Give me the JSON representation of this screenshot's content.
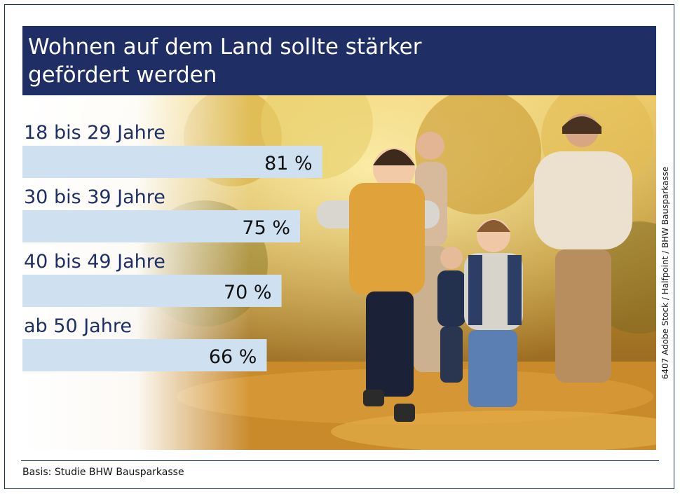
{
  "header": {
    "title": "Wohnen auf dem Land sollte stärker gefördert werden"
  },
  "chart_data": {
    "type": "bar",
    "orientation": "horizontal",
    "title": "Wohnen auf dem Land sollte stärker gefördert werden",
    "categories": [
      "18 bis 29 Jahre",
      "30 bis 39 Jahre",
      "40 bis 49 Jahre",
      "ab 50 Jahre"
    ],
    "values": [
      81,
      75,
      70,
      66
    ],
    "value_labels": [
      "81 %",
      "75 %",
      "70 %",
      "66 %"
    ],
    "unit": "%",
    "xlim": [
      0,
      100
    ],
    "grid": false,
    "legend": "none",
    "bar_color": "#cfe0f1",
    "label_color": "#1f2f66"
  },
  "footer": {
    "source": "Basis: Studie BHW Bausparkasse",
    "credit": "6407 Adobe Stock / Halfpoint / BHW Bausparkasse"
  },
  "colors": {
    "brand": "#1f2f66",
    "bar": "#cfe0f1"
  },
  "image": {
    "content-icon": "family-running-autumn-forest-photo"
  }
}
